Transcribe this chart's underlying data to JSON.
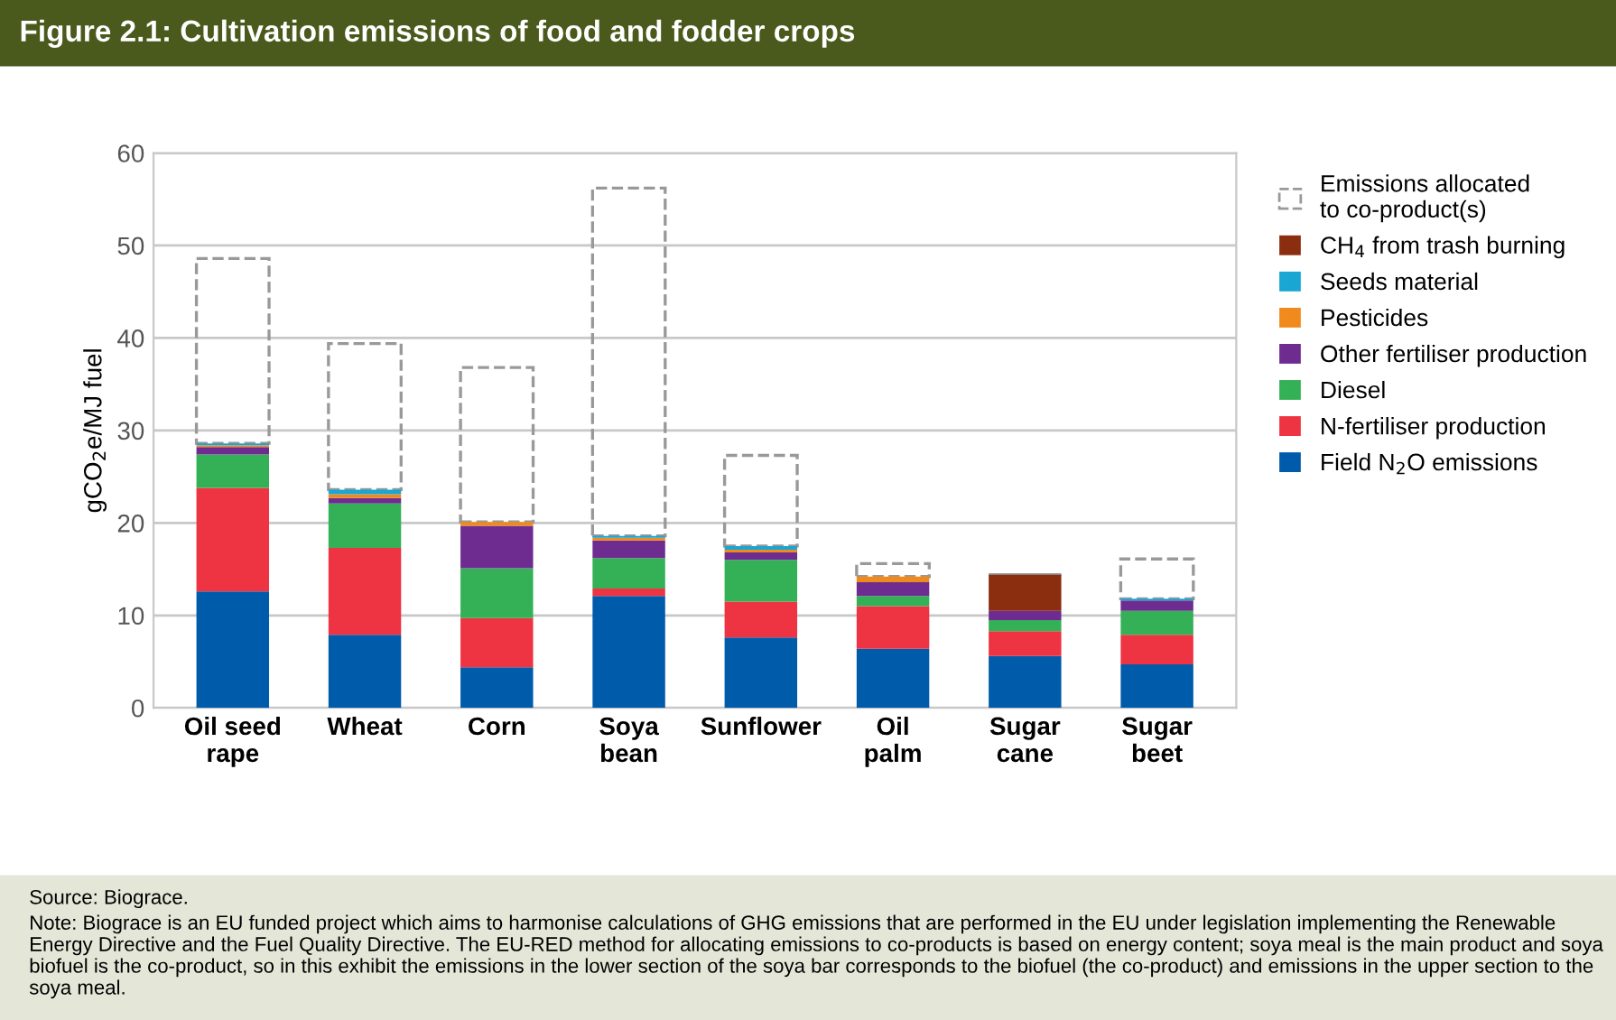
{
  "chart_data": {
    "type": "bar",
    "stacked": true,
    "title": "Figure 2.1: Cultivation emissions of food and fodder crops",
    "ylabel": "gCO$_{2}$e/MJ fuel",
    "categories": [
      "Oil seed\nrape",
      "Wheat",
      "Corn",
      "Soya\nbean",
      "Sunflower",
      "Oil\npalm",
      "Sugar\ncane",
      "Sugar\nbeet"
    ],
    "series": [
      {
        "name": "Field N$_{2}$O emissions",
        "color": "#005bab",
        "values": [
          12.6,
          7.9,
          4.4,
          12.1,
          7.6,
          6.4,
          5.6,
          4.7
        ]
      },
      {
        "name": "N-fertiliser production",
        "color": "#ee3342",
        "values": [
          11.2,
          9.4,
          5.3,
          0.8,
          3.9,
          4.6,
          2.7,
          3.2
        ]
      },
      {
        "name": "Diesel",
        "color": "#34b057",
        "values": [
          3.6,
          4.8,
          5.4,
          3.3,
          4.5,
          1.1,
          1.2,
          2.6
        ]
      },
      {
        "name": "Other fertiliser production",
        "color": "#6e2c91",
        "values": [
          0.8,
          0.6,
          4.6,
          1.9,
          0.8,
          1.5,
          1.0,
          1.1
        ]
      },
      {
        "name": "Pesticides",
        "color": "#f08a1c",
        "values": [
          0.2,
          0.4,
          0.4,
          0.3,
          0.3,
          0.6,
          0,
          0
        ]
      },
      {
        "name": "Seeds material",
        "color": "#1aa6d3",
        "values": [
          0.2,
          0.5,
          0,
          0.2,
          0.4,
          0,
          0,
          0.2
        ]
      },
      {
        "name": "CH$_{4}$ from trash burning",
        "color": "#8b2e10",
        "values": [
          0,
          0,
          0,
          0,
          0,
          0,
          3.9,
          0
        ]
      },
      {
        "name": "Emissions allocated\nto co-product(s)",
        "color": "#999999",
        "line_style": "dashed",
        "values": [
          20.0,
          15.8,
          16.7,
          37.6,
          9.8,
          1.4,
          0,
          4.3
        ]
      }
    ],
    "ylim": [
      0,
      60
    ],
    "yticks": [
      0,
      10,
      20,
      30,
      40,
      50,
      60
    ],
    "grid": "y",
    "legend": "right",
    "annotations": [
      "Source: Biograce.",
      "Note: Biograce is an EU funded project which aims to harmonise calculations of GHG emissions that are performed in the EU under legislation implementing the Renewable Energy Directive and the Fuel Quality Directive. The EU-RED method for allocating emissions to co-products is based on energy content; soya meal is the main product and soya biofuel is the co-product, so in this exhibit the emissions in the lower section of the soya bar corresponds to the biofuel (the co-product) and emissions in the upper section to the soya meal."
    ]
  }
}
